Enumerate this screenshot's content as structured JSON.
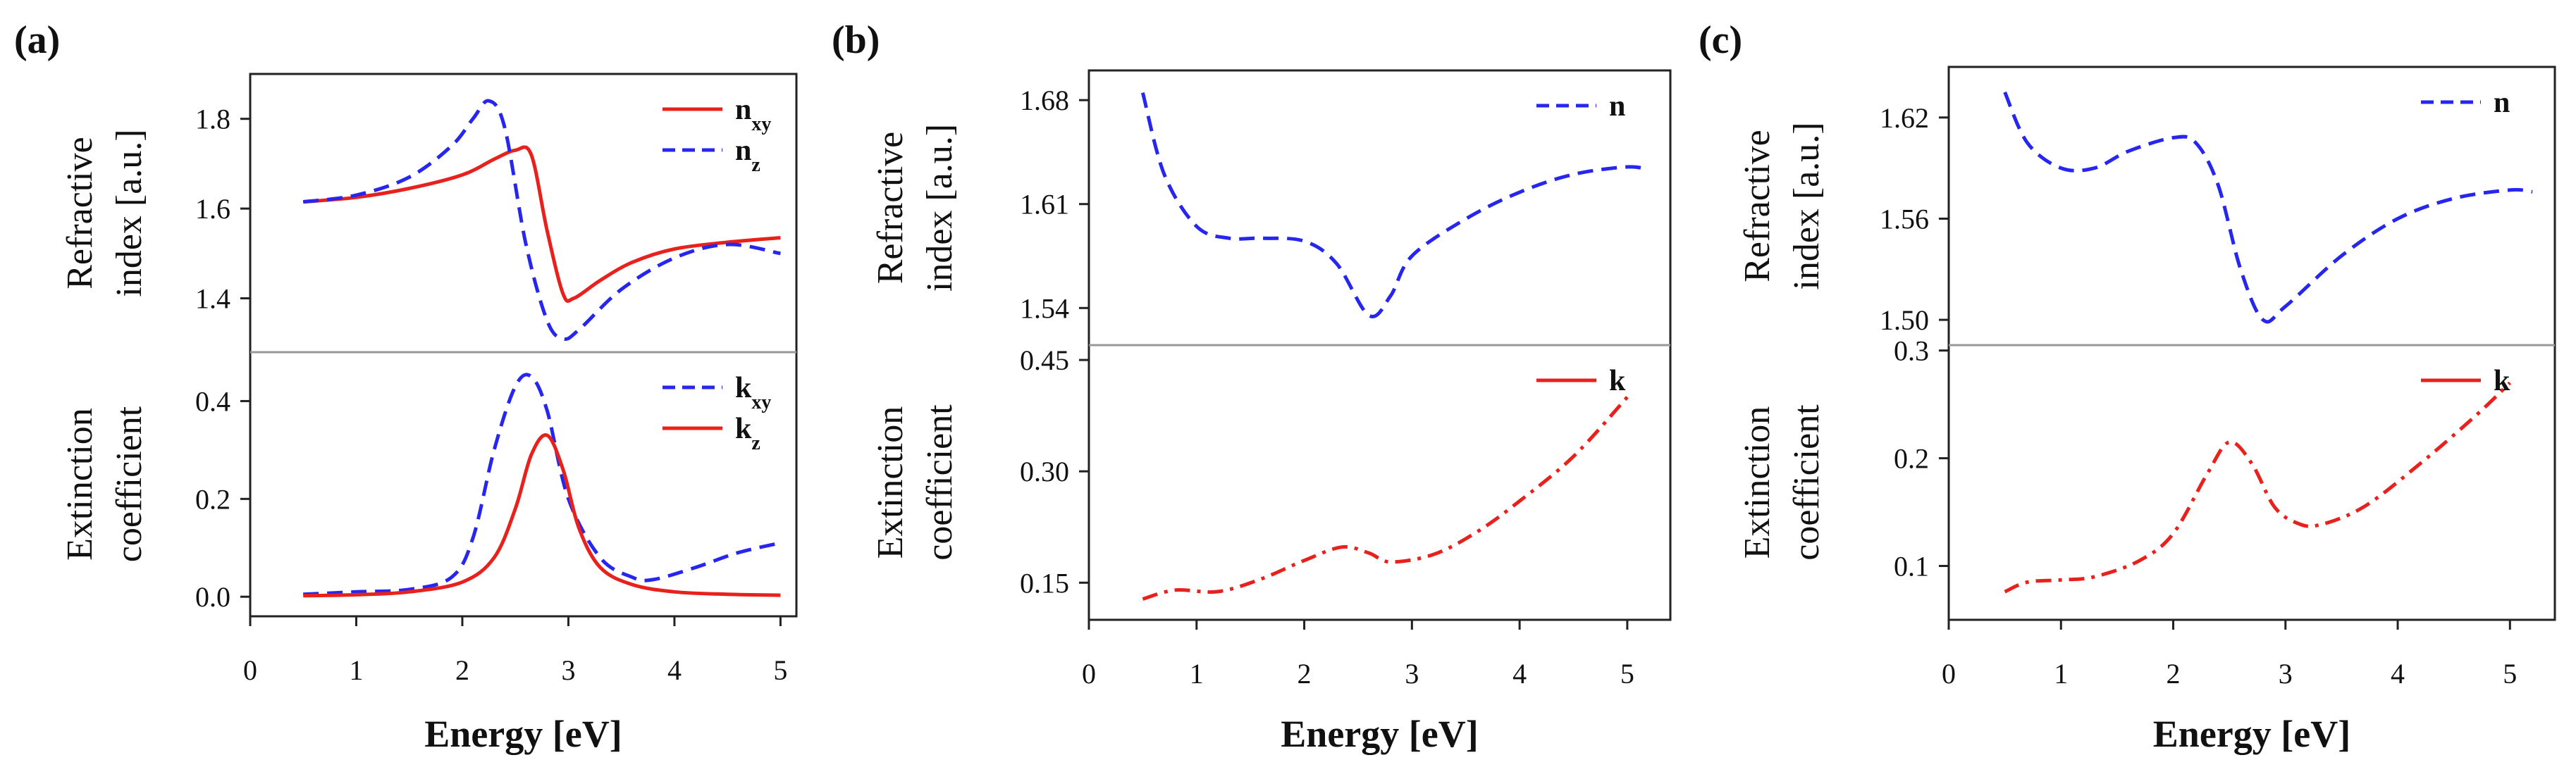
{
  "figure": {
    "panel_labels": [
      "(a)",
      "(b)",
      "(c)"
    ]
  },
  "chart_data": [
    {
      "type": "line",
      "panel": "(a)",
      "xlabel": "Energy [eV]",
      "xlim": [
        0,
        5.15
      ],
      "xticks": [
        "0",
        "1",
        "2",
        "3",
        "4",
        "5"
      ],
      "subplots": [
        {
          "ylabel": [
            "Refractive",
            "index [a.u.]"
          ],
          "ylim": [
            1.28,
            1.9
          ],
          "yticks": [
            "1.4",
            "1.6",
            "1.8"
          ],
          "legend_position": "top-right",
          "series": [
            {
              "name": "n",
              "sub": "xy",
              "color": "#e8211c",
              "style": "solid",
              "x": [
                0.5,
                1.0,
                1.5,
                2.0,
                2.3,
                2.5,
                2.65,
                2.8,
                2.95,
                3.05,
                3.3,
                3.6,
                4.0,
                4.5,
                5.0
              ],
              "y": [
                1.615,
                1.625,
                1.645,
                1.675,
                1.71,
                1.73,
                1.72,
                1.55,
                1.41,
                1.4,
                1.44,
                1.48,
                1.51,
                1.525,
                1.535
              ]
            },
            {
              "name": "n",
              "sub": "z",
              "color": "#2626f0",
              "style": "dashed",
              "x": [
                0.5,
                1.0,
                1.5,
                1.9,
                2.1,
                2.25,
                2.4,
                2.6,
                2.8,
                2.95,
                3.1,
                3.5,
                4.0,
                4.5,
                5.0
              ],
              "y": [
                1.615,
                1.63,
                1.67,
                1.74,
                1.8,
                1.84,
                1.78,
                1.52,
                1.35,
                1.31,
                1.33,
                1.42,
                1.49,
                1.52,
                1.5
              ]
            }
          ]
        },
        {
          "ylabel": [
            "Extinction",
            "coefficient"
          ],
          "ylim": [
            -0.04,
            0.5
          ],
          "yticks": [
            "0.0",
            "0.2",
            "0.4"
          ],
          "legend_position": "top-right",
          "series": [
            {
              "name": "k",
              "sub": "xy",
              "color": "#2626f0",
              "style": "dashed",
              "x": [
                0.5,
                1.0,
                1.5,
                1.9,
                2.1,
                2.3,
                2.5,
                2.65,
                2.8,
                3.0,
                3.3,
                3.6,
                3.8,
                4.2,
                4.6,
                5.0
              ],
              "y": [
                0.005,
                0.01,
                0.015,
                0.04,
                0.12,
                0.3,
                0.43,
                0.45,
                0.38,
                0.2,
                0.08,
                0.04,
                0.035,
                0.06,
                0.09,
                0.11
              ]
            },
            {
              "name": "k",
              "sub": "z",
              "color": "#e8211c",
              "style": "solid",
              "x": [
                0.5,
                1.0,
                1.5,
                2.0,
                2.3,
                2.5,
                2.65,
                2.8,
                2.95,
                3.1,
                3.3,
                3.6,
                4.0,
                4.5,
                5.0
              ],
              "y": [
                0.002,
                0.004,
                0.01,
                0.03,
                0.08,
                0.18,
                0.29,
                0.33,
                0.26,
                0.14,
                0.06,
                0.025,
                0.01,
                0.005,
                0.003
              ]
            }
          ]
        }
      ]
    },
    {
      "type": "line",
      "panel": "(b)",
      "xlabel": "Energy [eV]",
      "xlim": [
        0,
        5.4
      ],
      "xticks": [
        "0",
        "1",
        "2",
        "3",
        "4",
        "5"
      ],
      "subplots": [
        {
          "ylabel": [
            "Refractive",
            "index [a.u.]"
          ],
          "ylim": [
            1.515,
            1.7
          ],
          "yticks": [
            "1.54",
            "1.61",
            "1.68"
          ],
          "legend_position": "top-right",
          "series": [
            {
              "name": "n",
              "sub": "",
              "color": "#2626f0",
              "style": "dashed",
              "x": [
                0.5,
                0.7,
                1.0,
                1.3,
                1.6,
                2.0,
                2.3,
                2.6,
                2.8,
                3.0,
                3.5,
                4.0,
                4.5,
                5.0,
                5.2
              ],
              "y": [
                1.685,
                1.63,
                1.595,
                1.587,
                1.587,
                1.585,
                1.57,
                1.535,
                1.548,
                1.575,
                1.6,
                1.618,
                1.63,
                1.635,
                1.633
              ]
            }
          ]
        },
        {
          "ylabel": [
            "Extinction",
            "coefficient"
          ],
          "ylim": [
            0.1,
            0.47
          ],
          "yticks": [
            "0.15",
            "0.30",
            "0.45"
          ],
          "legend_position": "top-right",
          "series": [
            {
              "name": "k",
              "sub": "",
              "color": "#e8211c",
              "style": "dashdot",
              "x": [
                0.5,
                0.8,
                1.2,
                1.6,
                2.0,
                2.35,
                2.6,
                2.8,
                3.2,
                3.6,
                4.0,
                4.5,
                5.0
              ],
              "y": [
                0.128,
                0.14,
                0.138,
                0.155,
                0.18,
                0.198,
                0.19,
                0.178,
                0.188,
                0.218,
                0.26,
                0.32,
                0.4
              ]
            }
          ]
        }
      ]
    },
    {
      "type": "line",
      "panel": "(c)",
      "xlabel": "Energy [eV]",
      "xlim": [
        0,
        5.4
      ],
      "xticks": [
        "0",
        "1",
        "2",
        "3",
        "4",
        "5"
      ],
      "subplots": [
        {
          "ylabel": [
            "Refractive",
            "index [a.u.]"
          ],
          "ylim": [
            1.485,
            1.65
          ],
          "yticks": [
            "1.50",
            "1.56",
            "1.62"
          ],
          "legend_position": "top-right",
          "series": [
            {
              "name": "n",
              "sub": "",
              "color": "#2626f0",
              "style": "dashed",
              "x": [
                0.5,
                0.7,
                1.0,
                1.3,
                1.6,
                2.0,
                2.2,
                2.4,
                2.6,
                2.8,
                3.0,
                3.5,
                4.0,
                4.5,
                5.0,
                5.2
              ],
              "y": [
                1.635,
                1.605,
                1.59,
                1.59,
                1.6,
                1.608,
                1.605,
                1.58,
                1.53,
                1.5,
                1.508,
                1.538,
                1.56,
                1.572,
                1.577,
                1.576
              ]
            }
          ]
        },
        {
          "ylabel": [
            "Extinction",
            "coefficient"
          ],
          "ylim": [
            0.05,
            0.305
          ],
          "yticks": [
            "0.1",
            "0.2",
            "0.3"
          ],
          "legend_position": "top-right",
          "series": [
            {
              "name": "k",
              "sub": "",
              "color": "#e8211c",
              "style": "dashdot",
              "x": [
                0.5,
                0.7,
                1.0,
                1.3,
                1.7,
                2.0,
                2.3,
                2.5,
                2.7,
                2.9,
                3.1,
                3.3,
                3.7,
                4.2,
                4.7,
                5.0
              ],
              "y": [
                0.076,
                0.085,
                0.087,
                0.09,
                0.105,
                0.13,
                0.185,
                0.215,
                0.195,
                0.155,
                0.14,
                0.138,
                0.155,
                0.195,
                0.24,
                0.27
              ]
            }
          ]
        }
      ]
    }
  ]
}
